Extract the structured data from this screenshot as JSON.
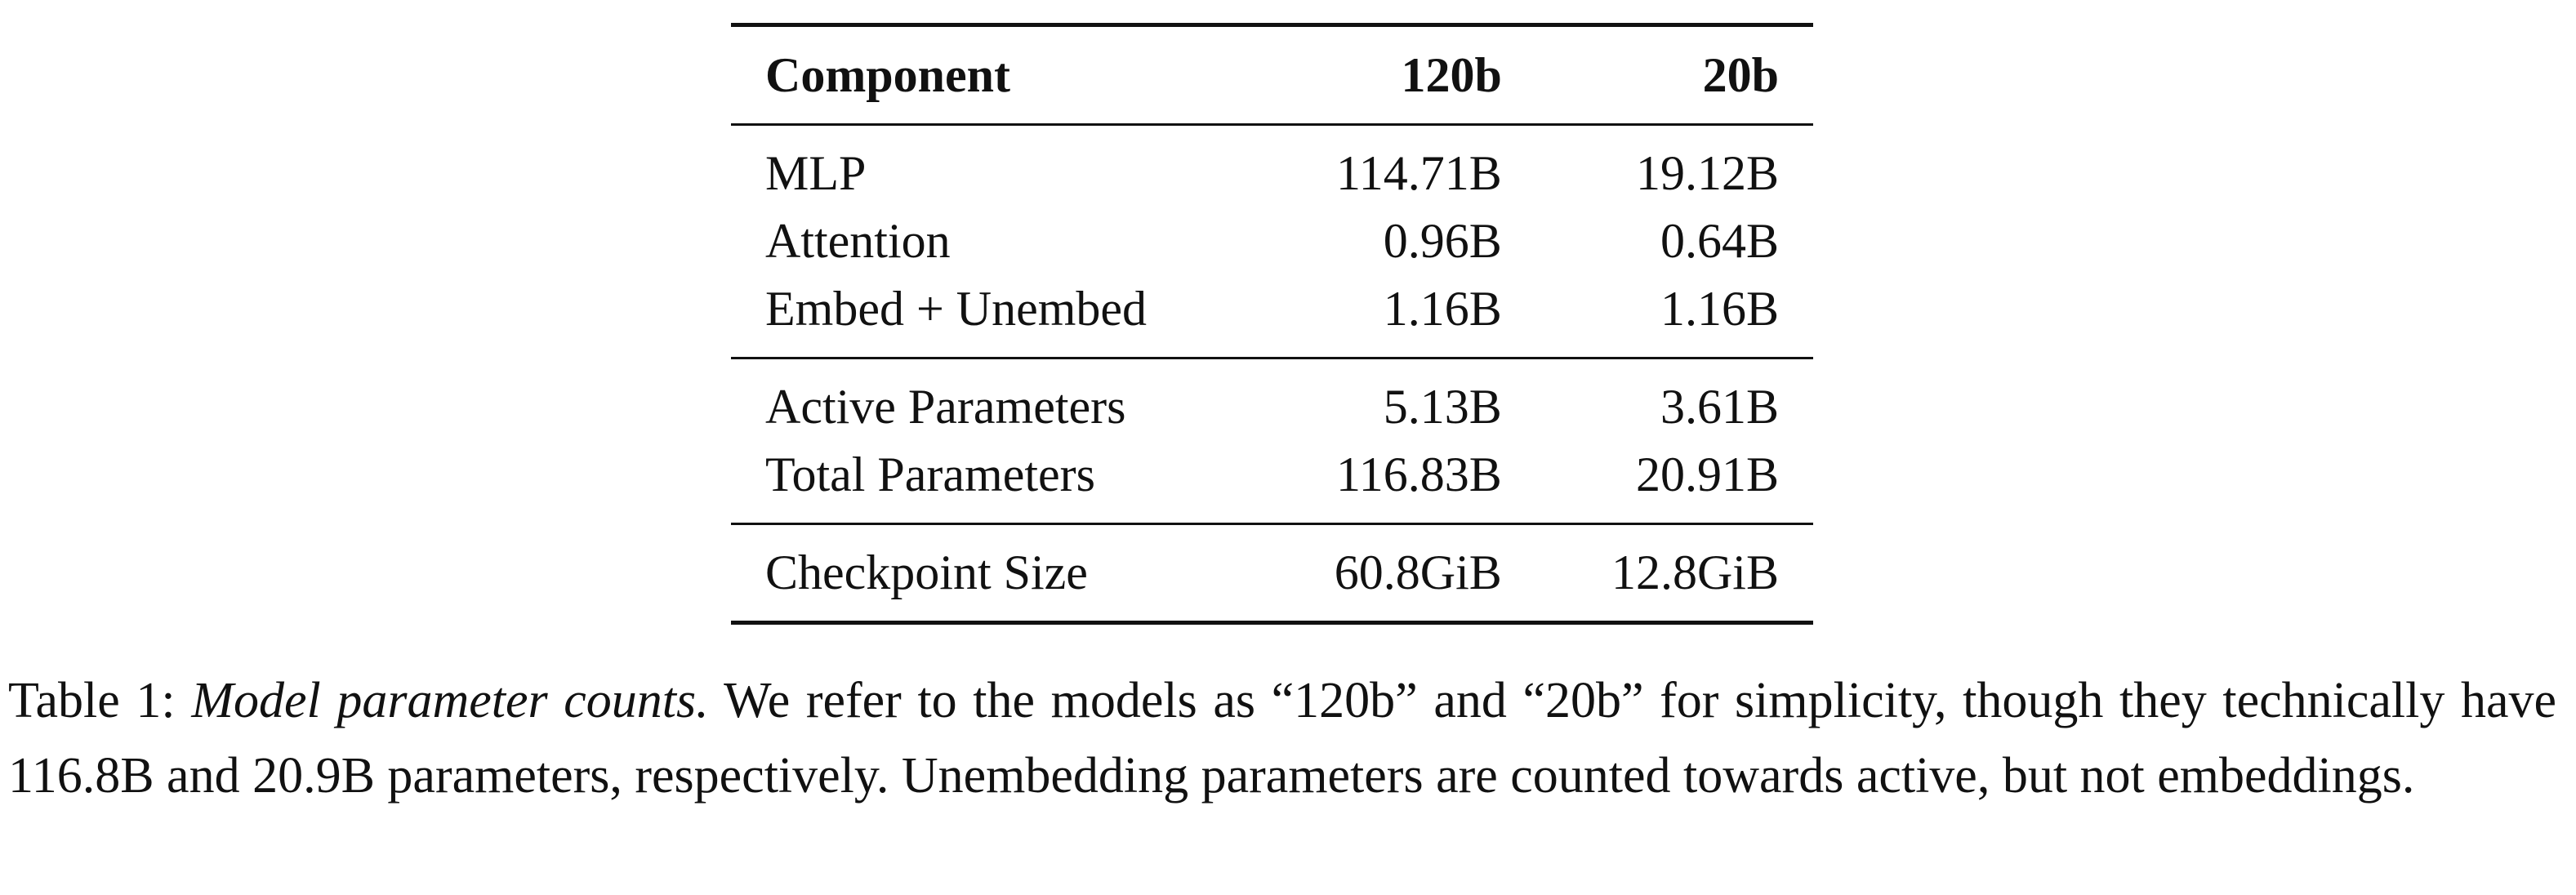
{
  "table": {
    "header": [
      "Component",
      "120b",
      "20b"
    ],
    "sections": [
      [
        [
          "MLP",
          "114.71B",
          "19.12B"
        ],
        [
          "Attention",
          "0.96B",
          "0.64B"
        ],
        [
          "Embed + Unembed",
          "1.16B",
          "1.16B"
        ]
      ],
      [
        [
          "Active Parameters",
          "5.13B",
          "3.61B"
        ],
        [
          "Total Parameters",
          "116.83B",
          "20.91B"
        ]
      ],
      [
        [
          "Checkpoint Size",
          "60.8GiB",
          "12.8GiB"
        ]
      ]
    ]
  },
  "caption": {
    "label": "Table 1:",
    "title": "Model parameter counts.",
    "text": "We refer to the models as “120b” and “20b” for simplicity, though they technically have 116.8B and 20.9B parameters, respectively. Unembedding parameters are counted towards active, but not embeddings."
  }
}
